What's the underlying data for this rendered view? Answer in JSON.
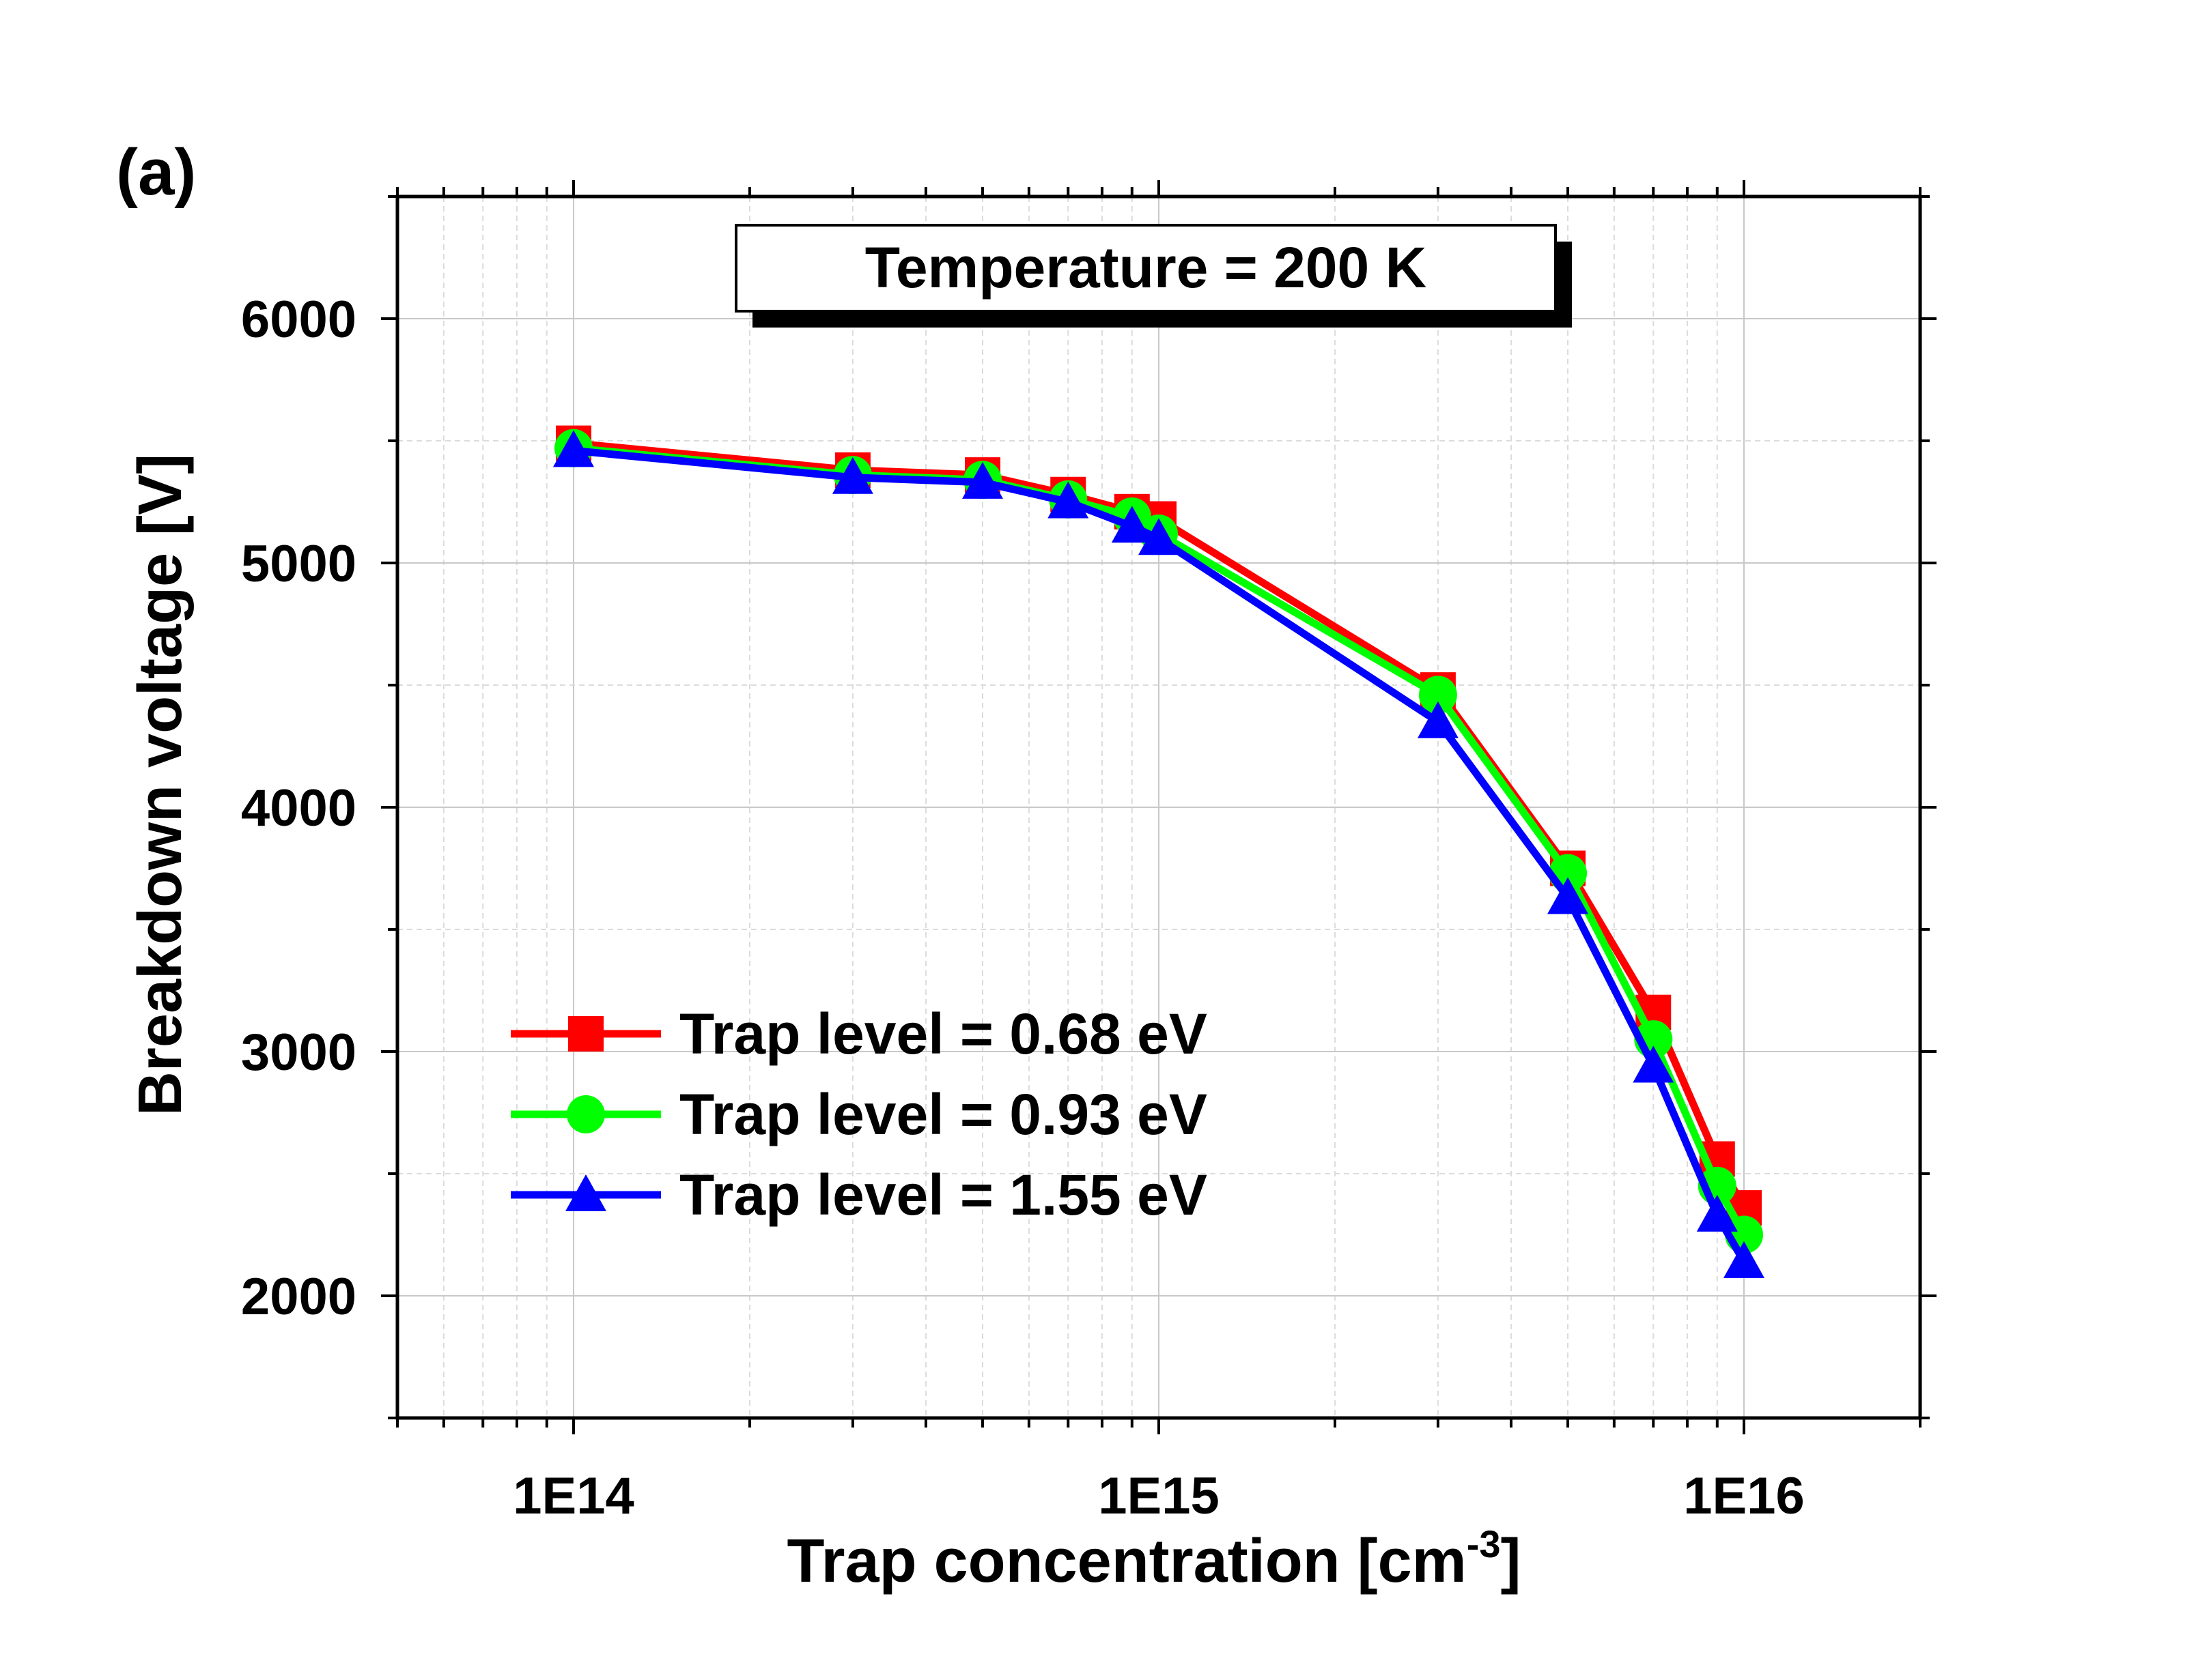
{
  "panel_label": "(a)",
  "annotation": "Temperature = 200 K",
  "chart_data": {
    "type": "line",
    "title": "",
    "xlabel": "Trap concentration [cm",
    "xlabel_sup": "-3",
    "xlabel_close": "]",
    "ylabel": "Breakdown voltage [V]",
    "xscale": "log",
    "xlim": [
      50000000000000.0,
      2e+16
    ],
    "ylim": [
      1500,
      6500
    ],
    "grid": true,
    "legend_position": "bottom-left",
    "x_ticks": [
      {
        "value": 100000000000000.0,
        "label": "1E14"
      },
      {
        "value": 1000000000000000.0,
        "label": "1E15"
      },
      {
        "value": 1e+16,
        "label": "1E16"
      }
    ],
    "y_ticks": [
      {
        "value": 2000,
        "label": "2000"
      },
      {
        "value": 3000,
        "label": "3000"
      },
      {
        "value": 4000,
        "label": "4000"
      },
      {
        "value": 5000,
        "label": "5000"
      },
      {
        "value": 6000,
        "label": "6000"
      }
    ],
    "x": [
      100000000000000.0,
      300000000000000.0,
      500000000000000.0,
      700000000000000.0,
      900000000000000.0,
      1000000000000000.0,
      3000000000000000.0,
      5000000000000000.0,
      7000000000000000.0,
      9000000000000000.0,
      1e+16
    ],
    "series": [
      {
        "name": "Trap level = 0.68 eV",
        "color": "#ff0000",
        "marker": "square",
        "values": [
          5490,
          5380,
          5360,
          5280,
          5210,
          5180,
          4480,
          3750,
          3160,
          2560,
          2360
        ]
      },
      {
        "name": "Trap level = 0.93 eV",
        "color": "#00ff00",
        "marker": "circle",
        "values": [
          5470,
          5360,
          5340,
          5260,
          5190,
          5120,
          4460,
          3730,
          3050,
          2450,
          2250
        ]
      },
      {
        "name": "Trap level = 1.55 eV",
        "color": "#0000ff",
        "marker": "triangle",
        "values": [
          5460,
          5350,
          5330,
          5250,
          5150,
          5100,
          4350,
          3630,
          2940,
          2330,
          2140
        ]
      }
    ]
  }
}
